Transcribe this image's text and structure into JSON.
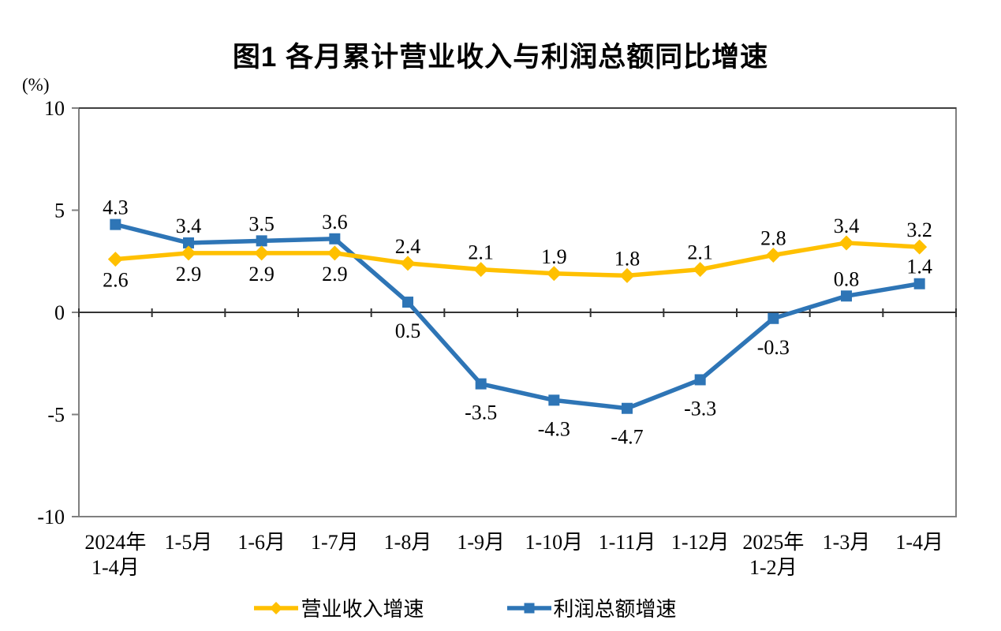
{
  "figure": {
    "title": "图1  各月累计营业收入与利润总额同比增速",
    "unit_label": "(%)"
  },
  "chart_data": {
    "type": "line",
    "categories": [
      [
        "2024年",
        "1-4月"
      ],
      [
        "1-5月"
      ],
      [
        "1-6月"
      ],
      [
        "1-7月"
      ],
      [
        "1-8月"
      ],
      [
        "1-9月"
      ],
      [
        "1-10月"
      ],
      [
        "1-11月"
      ],
      [
        "1-12月"
      ],
      [
        "2025年",
        "1-2月"
      ],
      [
        "1-3月"
      ],
      [
        "1-4月"
      ]
    ],
    "series": [
      {
        "id": "revenue",
        "name": "营业收入增速",
        "color": "#FFC000",
        "marker": "diamond",
        "values": [
          2.6,
          2.9,
          2.9,
          2.9,
          2.4,
          2.1,
          1.9,
          1.8,
          2.1,
          2.8,
          3.4,
          3.2
        ],
        "label_pos": [
          "below",
          "below",
          "below",
          "below",
          "above",
          "above",
          "above",
          "above",
          "above",
          "above",
          "above",
          "above"
        ]
      },
      {
        "id": "profit",
        "name": "利润总额增速",
        "color": "#2E75B6",
        "marker": "square",
        "values": [
          4.3,
          3.4,
          3.5,
          3.6,
          0.5,
          -3.5,
          -4.3,
          -4.7,
          -3.3,
          -0.3,
          0.8,
          1.4
        ],
        "label_pos": [
          "above",
          "above",
          "above",
          "above",
          "below",
          "below",
          "below",
          "below",
          "below",
          "below",
          "above",
          "above"
        ]
      }
    ],
    "ylim": [
      -10,
      10
    ],
    "yticks": [
      10,
      5,
      0,
      -5,
      -10
    ],
    "grid": "zero-line-only",
    "legend_position": "bottom",
    "axis_colors": {
      "frame": "#808080",
      "frame_top": "#404040",
      "zero_line": "#333333"
    }
  }
}
